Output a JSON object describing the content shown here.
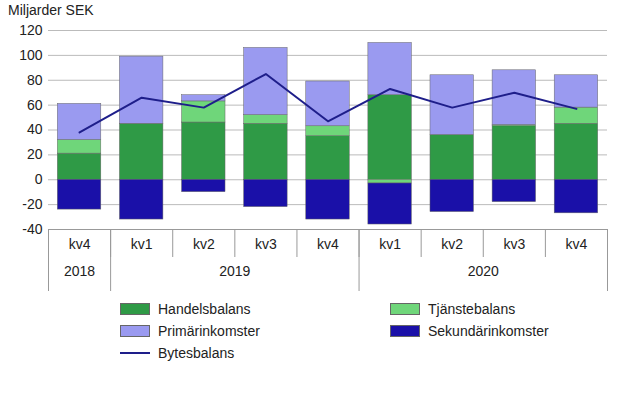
{
  "chart_data": {
    "type": "bar",
    "stacked": true,
    "grid": true,
    "legend": "bottom",
    "y_label": "Miljarder SEK",
    "ylim": [
      -40,
      120
    ],
    "yticks": [
      -40,
      -20,
      0,
      20,
      40,
      60,
      80,
      100,
      120
    ],
    "categories": [
      "kv4",
      "kv1",
      "kv2",
      "kv3",
      "kv4",
      "kv1",
      "kv2",
      "kv3",
      "kv4"
    ],
    "years": [
      "2018",
      "2019",
      "2019",
      "2019",
      "2019",
      "2020",
      "2020",
      "2020",
      "2020"
    ],
    "series": [
      {
        "name": "Handelsbalans",
        "type": "bar",
        "color": "#2f9a46",
        "values": [
          21,
          45,
          46,
          45,
          35,
          68,
          36,
          43,
          45
        ]
      },
      {
        "name": "Tjänstebalans",
        "type": "bar",
        "color": "#6fd67a",
        "values": [
          11,
          0,
          17,
          7,
          8,
          -3,
          0,
          1,
          13
        ]
      },
      {
        "name": "Primärinkomster",
        "type": "bar",
        "color": "#9a9af0",
        "values": [
          29,
          54,
          5,
          54,
          36,
          42,
          48,
          44,
          26
        ]
      },
      {
        "name": "Sekundärinkomster",
        "type": "bar",
        "color": "#1a10a8",
        "values": [
          -24,
          -32,
          -10,
          -22,
          -32,
          -33,
          -26,
          -18,
          -27
        ]
      },
      {
        "name": "Bytesbalans",
        "type": "line",
        "color": "#1e1e8a",
        "values": [
          38,
          66,
          58,
          85,
          47,
          73,
          58,
          70,
          57
        ]
      }
    ]
  }
}
